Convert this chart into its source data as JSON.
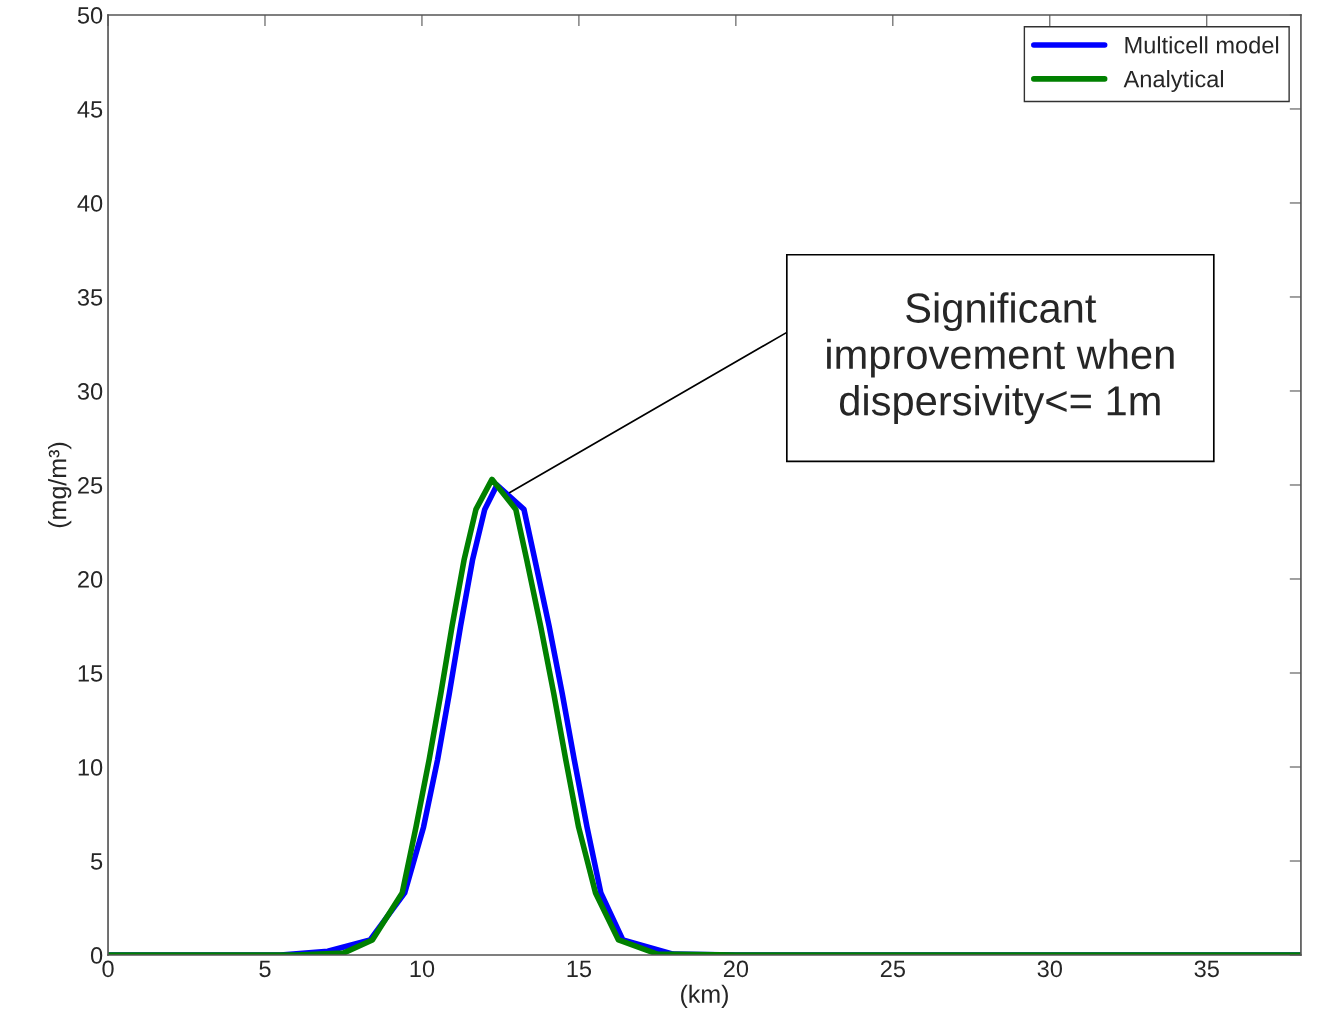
{
  "chart_data": {
    "type": "line",
    "xlabel": "(km)",
    "ylabel": "(mg/m³)",
    "xlim": [
      0,
      38
    ],
    "xticks": [
      0,
      5,
      10,
      15,
      20,
      25,
      30,
      35
    ],
    "ylim": [
      0,
      50
    ],
    "yticks": [
      0,
      5,
      10,
      15,
      20,
      25,
      30,
      35,
      40,
      45,
      50
    ],
    "grid": false,
    "legend": "top right",
    "marker": "none",
    "line_style": "solid",
    "series": [
      {
        "name": "Multicell model",
        "color": "#0000ff",
        "x": [
          0,
          5.5,
          7,
          8.35,
          9.45,
          10.05,
          10.5,
          10.87,
          11.23,
          11.61,
          12.0,
          12.39,
          13.25,
          13.6,
          14.05,
          14.47,
          14.85,
          15.26,
          15.7,
          16.4,
          18,
          20,
          38
        ],
        "values": [
          0,
          0,
          0.2,
          0.8,
          3.3,
          6.8,
          10.4,
          13.9,
          17.5,
          21,
          23.7,
          25.0,
          23.7,
          21,
          17.5,
          13.9,
          10.4,
          6.8,
          3.3,
          0.8,
          0.05,
          0,
          0
        ]
      },
      {
        "name": "Analytical",
        "color": "#008000",
        "x": [
          0,
          6,
          7.5,
          8.42,
          9.37,
          9.81,
          10.23,
          10.6,
          10.96,
          11.34,
          11.72,
          12.23,
          12.99,
          13.34,
          13.78,
          14.2,
          14.58,
          14.99,
          15.53,
          16.26,
          17.5,
          20,
          38
        ],
        "values": [
          0,
          0,
          0.1,
          0.8,
          3.3,
          6.8,
          10.4,
          13.9,
          17.5,
          21,
          23.7,
          25.3,
          23.7,
          21,
          17.5,
          13.9,
          10.4,
          6.8,
          3.3,
          0.8,
          0.05,
          0,
          0
        ]
      }
    ],
    "annotations": [
      {
        "text": "Significant\nimprovement when\ndispersivity<= 1m",
        "x": 12.8,
        "y": 24.6
      }
    ]
  }
}
